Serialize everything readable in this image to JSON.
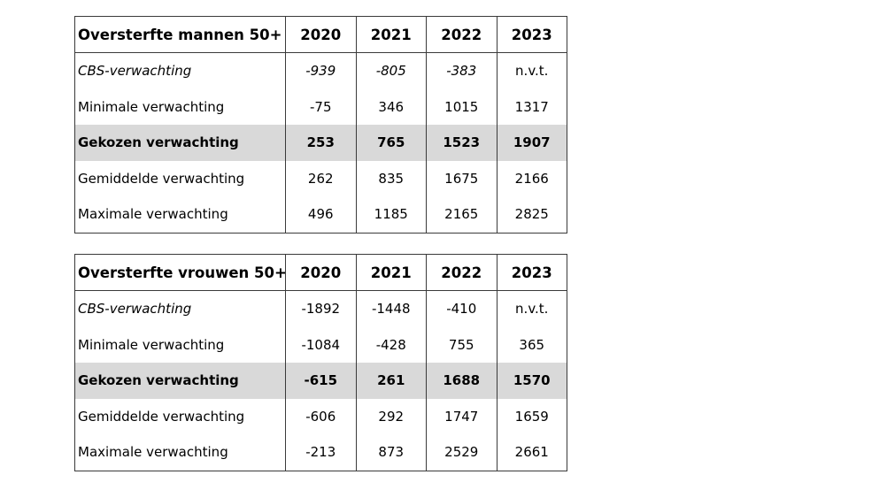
{
  "tables": [
    {
      "title": "Oversterfte mannen 50+",
      "years": [
        "2020",
        "2021",
        "2022",
        "2023"
      ],
      "rows": [
        {
          "label": "CBS-verwachting",
          "values": [
            "-939",
            "-805",
            "-383",
            "n.v.t."
          ]
        },
        {
          "label": "Minimale verwachting",
          "values": [
            "-75",
            "346",
            "1015",
            "1317"
          ]
        },
        {
          "label": "Gekozen verwachting",
          "values": [
            "253",
            "765",
            "1523",
            "1907"
          ]
        },
        {
          "label": "Gemiddelde verwachting",
          "values": [
            "262",
            "835",
            "1675",
            "2166"
          ]
        },
        {
          "label": "Maximale verwachting",
          "values": [
            "496",
            "1185",
            "2165",
            "2825"
          ]
        }
      ]
    },
    {
      "title": "Oversterfte vrouwen 50+",
      "years": [
        "2020",
        "2021",
        "2022",
        "2023"
      ],
      "rows": [
        {
          "label": "CBS-verwachting",
          "values": [
            "-1892",
            "-1448",
            "-410",
            "n.v.t."
          ]
        },
        {
          "label": "Minimale verwachting",
          "values": [
            "-1084",
            "-428",
            "755",
            "365"
          ]
        },
        {
          "label": "Gekozen verwachting",
          "values": [
            "-615",
            "261",
            "1688",
            "1570"
          ]
        },
        {
          "label": "Gemiddelde verwachting",
          "values": [
            "-606",
            "292",
            "1747",
            "1659"
          ]
        },
        {
          "label": "Maximale verwachting",
          "values": [
            "-213",
            "873",
            "2529",
            "2661"
          ]
        }
      ]
    }
  ],
  "colors": {
    "highlight_row": "#d9d9d9",
    "border": "#3a3a3a"
  }
}
